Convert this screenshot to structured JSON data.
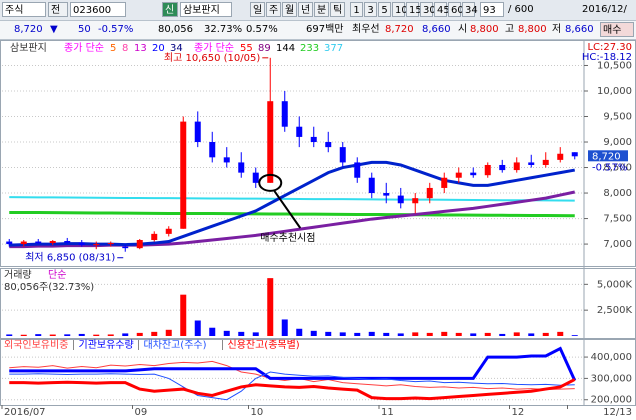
{
  "toolbar": {
    "market": "주식",
    "mode": "전",
    "code": "023600",
    "badge": "신",
    "name": "삼보판지",
    "periods": [
      "일",
      "주",
      "월",
      "년",
      "분",
      "틱"
    ],
    "minutes": [
      "1",
      "3",
      "5",
      "10",
      "15",
      "30",
      "45",
      "60",
      "34"
    ],
    "count": "93",
    "max": "/ 600",
    "date": "2016/12/"
  },
  "quote": {
    "price": "8,720",
    "arrow": "▼",
    "change": "50",
    "change_pct": "-0.57%",
    "volume": "80,056",
    "vol_ratio": "32.73%",
    "turnover": "0.57%",
    "amount": "697백만",
    "best_label": "최우선",
    "ask": "8,720",
    "bid": "8,660",
    "open_label": "시",
    "open": "8,800",
    "high_label": "고",
    "high": "8,800",
    "low_label": "저",
    "low": "8,660",
    "buy": "매수"
  },
  "chart_data": [
    {
      "type": "candlestick",
      "title": "삼보판지",
      "lc": "LC:27.30",
      "hc": "HC:-18.12",
      "last_label": "8,720",
      "last_pct": "-0.57%",
      "ma_legend": [
        {
          "label": "종가 단순",
          "color": "#ff00ff",
          "periods": [
            {
              "text": "5",
              "color": "#ff6600"
            },
            {
              "text": "8",
              "color": "#ff44aa"
            },
            {
              "text": "13",
              "color": "#cc00cc"
            },
            {
              "text": "20",
              "color": "#0000ff"
            },
            {
              "text": "34",
              "color": "#000080"
            }
          ]
        },
        {
          "label": "종가 단순",
          "color": "#ff00ff",
          "periods": [
            {
              "text": "55",
              "color": "#ff0000"
            },
            {
              "text": "89",
              "color": "#800080"
            },
            {
              "text": "144",
              "color": "#000000"
            },
            {
              "text": "233",
              "color": "#22cc22"
            },
            {
              "text": "377",
              "color": "#33ccee"
            }
          ]
        }
      ],
      "annotations": {
        "high": "최고 10,650 (10/05)",
        "low": "최저 6,850 (08/31)",
        "signal": "매수추천시점"
      },
      "up_color": "#ff0000",
      "down_color": "#0000ff",
      "categories": [
        "2016/07",
        null,
        null,
        null,
        null,
        null,
        null,
        null,
        null,
        "09",
        null,
        null,
        null,
        null,
        null,
        null,
        null,
        "10",
        null,
        null,
        null,
        null,
        null,
        null,
        null,
        null,
        "11",
        null,
        null,
        null,
        null,
        null,
        null,
        null,
        null,
        "12",
        null,
        null,
        null,
        "12/13"
      ],
      "open": [
        7050,
        7000,
        7050,
        7020,
        7060,
        7030,
        6980,
        7000,
        6950,
        6920,
        7080,
        7200,
        7300,
        9400,
        9000,
        8700,
        8600,
        8400,
        8200,
        9800,
        9300,
        9100,
        9000,
        8900,
        8600,
        8300,
        8000,
        7950,
        7800,
        7900,
        8100,
        8300,
        8400,
        8350,
        8550,
        8450,
        8600,
        8550,
        8650,
        8800
      ],
      "high": [
        7100,
        7080,
        7100,
        7080,
        7120,
        7080,
        7050,
        7050,
        7000,
        7100,
        7250,
        7350,
        9500,
        9600,
        9200,
        8900,
        8800,
        8500,
        10650,
        10000,
        9500,
        9300,
        9200,
        9000,
        8700,
        8400,
        8200,
        8100,
        8000,
        8200,
        8400,
        8500,
        8500,
        8600,
        8650,
        8700,
        8750,
        8800,
        8900,
        8800
      ],
      "low": [
        6950,
        6950,
        7000,
        6980,
        7000,
        6950,
        6900,
        6950,
        6850,
        6900,
        7050,
        7150,
        7300,
        8900,
        8600,
        8500,
        8300,
        8100,
        8200,
        9200,
        8900,
        8900,
        8800,
        8500,
        8200,
        7900,
        7800,
        7700,
        7600,
        7800,
        8000,
        8200,
        8300,
        8300,
        8400,
        8400,
        8500,
        8500,
        8600,
        8660
      ],
      "close": [
        7000,
        7050,
        7020,
        7060,
        7030,
        6980,
        7000,
        7020,
        6920,
        7080,
        7200,
        7300,
        9400,
        9000,
        8700,
        8600,
        8400,
        8200,
        9800,
        9300,
        9100,
        9000,
        8900,
        8600,
        8300,
        8000,
        7950,
        7800,
        7900,
        8100,
        8300,
        8400,
        8350,
        8550,
        8450,
        8600,
        8550,
        8650,
        8770,
        8720
      ],
      "series": [
        {
          "color": "#22cc22",
          "width": 3,
          "values": [
            7620,
            7620,
            7618,
            7616,
            7614,
            7612,
            7610,
            7608,
            7606,
            7604,
            7602,
            7600,
            7600,
            7600,
            7598,
            7596,
            7594,
            7592,
            7590,
            7590,
            7588,
            7586,
            7584,
            7582,
            7580,
            7580,
            7578,
            7576,
            7574,
            7572,
            7570,
            7570,
            7568,
            7566,
            7564,
            7562,
            7560,
            7560,
            7558,
            7556
          ]
        },
        {
          "color": "#33ddee",
          "width": 2,
          "values": [
            7920,
            7918,
            7916,
            7914,
            7912,
            7910,
            7908,
            7906,
            7904,
            7902,
            7900,
            7900,
            7898,
            7896,
            7894,
            7892,
            7890,
            7890,
            7888,
            7886,
            7884,
            7882,
            7880,
            7880,
            7878,
            7876,
            7874,
            7872,
            7870,
            7870,
            7868,
            7866,
            7864,
            7862,
            7860,
            7860,
            7858,
            7856,
            7854,
            7852
          ]
        },
        {
          "color": "#7a1fa2",
          "width": 3,
          "values": [
            6950,
            6950,
            6960,
            6960,
            6970,
            6970,
            6970,
            6980,
            6980,
            6980,
            6990,
            7000,
            7020,
            7050,
            7080,
            7110,
            7140,
            7170,
            7210,
            7250,
            7290,
            7330,
            7370,
            7410,
            7450,
            7490,
            7520,
            7550,
            7580,
            7610,
            7640,
            7670,
            7700,
            7740,
            7780,
            7820,
            7860,
            7900,
            7960,
            8020
          ]
        },
        {
          "color": "#0022cc",
          "width": 3,
          "values": [
            6980,
            6990,
            7000,
            7000,
            7010,
            7010,
            7000,
            7000,
            6990,
            7000,
            7020,
            7050,
            7150,
            7250,
            7350,
            7450,
            7550,
            7650,
            7800,
            7950,
            8100,
            8250,
            8400,
            8500,
            8550,
            8600,
            8600,
            8550,
            8450,
            8350,
            8250,
            8200,
            8150,
            8150,
            8200,
            8250,
            8300,
            8350,
            8400,
            8450
          ]
        }
      ],
      "ylim": [
        6590,
        10960
      ],
      "yticks": [
        {
          "value": 7000,
          "label": "7,000"
        },
        {
          "value": 7500,
          "label": "7,500"
        },
        {
          "value": 8000,
          "label": "8,000"
        },
        {
          "value": 8500,
          "label": "8,500"
        },
        {
          "value": 9000,
          "label": "9,000"
        },
        {
          "value": 9500,
          "label": "9,500"
        },
        {
          "value": 10000,
          "label": "10,000"
        },
        {
          "value": 10500,
          "label": "10,500"
        }
      ],
      "grid": true
    },
    {
      "type": "bar",
      "title": "거래량",
      "title2": "단순",
      "subtitle": "80,056주(32.73%)",
      "values": [
        150,
        120,
        180,
        140,
        160,
        200,
        130,
        150,
        250,
        300,
        400,
        600,
        4000,
        1500,
        800,
        500,
        400,
        350,
        5600,
        1600,
        700,
        500,
        400,
        350,
        300,
        400,
        300,
        250,
        350,
        300,
        400,
        300,
        250,
        300,
        200,
        350,
        250,
        300,
        400,
        80
      ],
      "ylim": [
        0,
        6000
      ],
      "yticks": [
        {
          "value": 2500,
          "label": "2,500K"
        },
        {
          "value": 5000,
          "label": "5,000K"
        }
      ],
      "grid": true
    },
    {
      "type": "line",
      "series": [
        {
          "name": "외국인보유비중",
          "color": "#ff4040",
          "width": 1,
          "values": [
            350000,
            355000,
            352000,
            360000,
            348000,
            356000,
            350000,
            362000,
            358000,
            365000,
            360000,
            370000,
            375000,
            372000,
            380000,
            360000,
            330000,
            320000,
            300000,
            290000,
            300000,
            285000,
            295000,
            280000,
            275000,
            270000,
            265000,
            270000,
            262000,
            258000,
            260000,
            255000,
            258000,
            252000,
            255000,
            250000,
            252000,
            248000,
            250000,
            252000
          ]
        },
        {
          "name": "기관보유수량",
          "color": "#0000ff",
          "width": 3,
          "values": [
            335000,
            335000,
            335000,
            335000,
            335000,
            335000,
            335000,
            335000,
            335000,
            340000,
            345000,
            345000,
            345000,
            345000,
            345000,
            345000,
            345000,
            345000,
            300000,
            300000,
            300000,
            300000,
            300000,
            300000,
            300000,
            300000,
            300000,
            300000,
            300000,
            300000,
            300000,
            300000,
            300000,
            400000,
            400000,
            400000,
            405000,
            405000,
            440000,
            290000
          ]
        },
        {
          "name": "대차잔고(주수)",
          "color": "#2050ff",
          "width": 1,
          "values": [
            320000,
            320000,
            322000,
            320000,
            318000,
            320000,
            320000,
            322000,
            320000,
            318000,
            320000,
            300000,
            260000,
            220000,
            210000,
            200000,
            240000,
            300000,
            330000,
            320000,
            315000,
            310000,
            312000,
            305000,
            300000,
            295000,
            298000,
            290000,
            285000,
            288000,
            280000,
            282000,
            278000,
            275000,
            276000,
            272000,
            270000,
            272000,
            268000,
            270000
          ]
        },
        {
          "name": "신용잔고(종목별)",
          "color": "#ff0000",
          "width": 3,
          "values": [
            280000,
            280000,
            278000,
            280000,
            282000,
            280000,
            278000,
            280000,
            280000,
            250000,
            240000,
            245000,
            250000,
            230000,
            220000,
            240000,
            260000,
            270000,
            265000,
            260000,
            258000,
            262000,
            255000,
            250000,
            245000,
            210000,
            205000,
            205000,
            208000,
            205000,
            210000,
            215000,
            220000,
            225000,
            230000,
            235000,
            240000,
            250000,
            260000,
            295000
          ]
        }
      ],
      "ylim": [
        180000,
        480000
      ],
      "yticks": [
        {
          "value": 200000,
          "label": "200,000"
        },
        {
          "value": 300000,
          "label": "300,000"
        },
        {
          "value": 400000,
          "label": "400,000"
        }
      ],
      "grid": true
    }
  ]
}
